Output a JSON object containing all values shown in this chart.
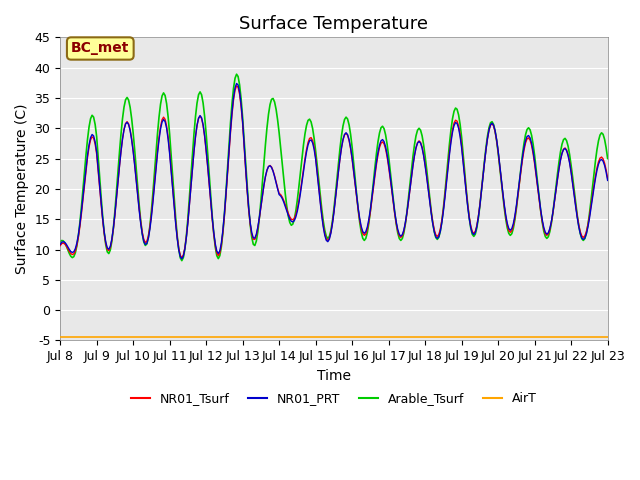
{
  "title": "Surface Temperature",
  "xlabel": "Time",
  "ylabel": "Surface Temperature (C)",
  "ylim": [
    -5,
    45
  ],
  "xlim": [
    0,
    15
  ],
  "xtick_labels": [
    "Jul 8",
    "Jul 9",
    "Jul 10",
    "Jul 11",
    "Jul 12",
    "Jul 13",
    "Jul 14",
    "Jul 15",
    "Jul 16",
    "Jul 17",
    "Jul 18",
    "Jul 19",
    "Jul 20",
    "Jul 21",
    "Jul 22",
    "Jul 23"
  ],
  "xtick_positions": [
    0,
    1,
    2,
    3,
    4,
    5,
    6,
    7,
    8,
    9,
    10,
    11,
    12,
    13,
    14,
    15
  ],
  "ytick_positions": [
    -5,
    0,
    5,
    10,
    15,
    20,
    25,
    30,
    35,
    40,
    45
  ],
  "annotation_text": "BC_met",
  "annotation_color": "#8B0000",
  "annotation_bg": "#FFFF99",
  "legend_labels": [
    "NR01_Tsurf",
    "NR01_PRT",
    "Arable_Tsurf",
    "AirT"
  ],
  "line_colors": [
    "red",
    "#0000CC",
    "#00CC00",
    "orange"
  ],
  "background_color": "#E8E8E8",
  "grid_color": "white",
  "title_fontsize": 13,
  "axis_fontsize": 10,
  "tick_fontsize": 9,
  "legend_fontsize": 9
}
